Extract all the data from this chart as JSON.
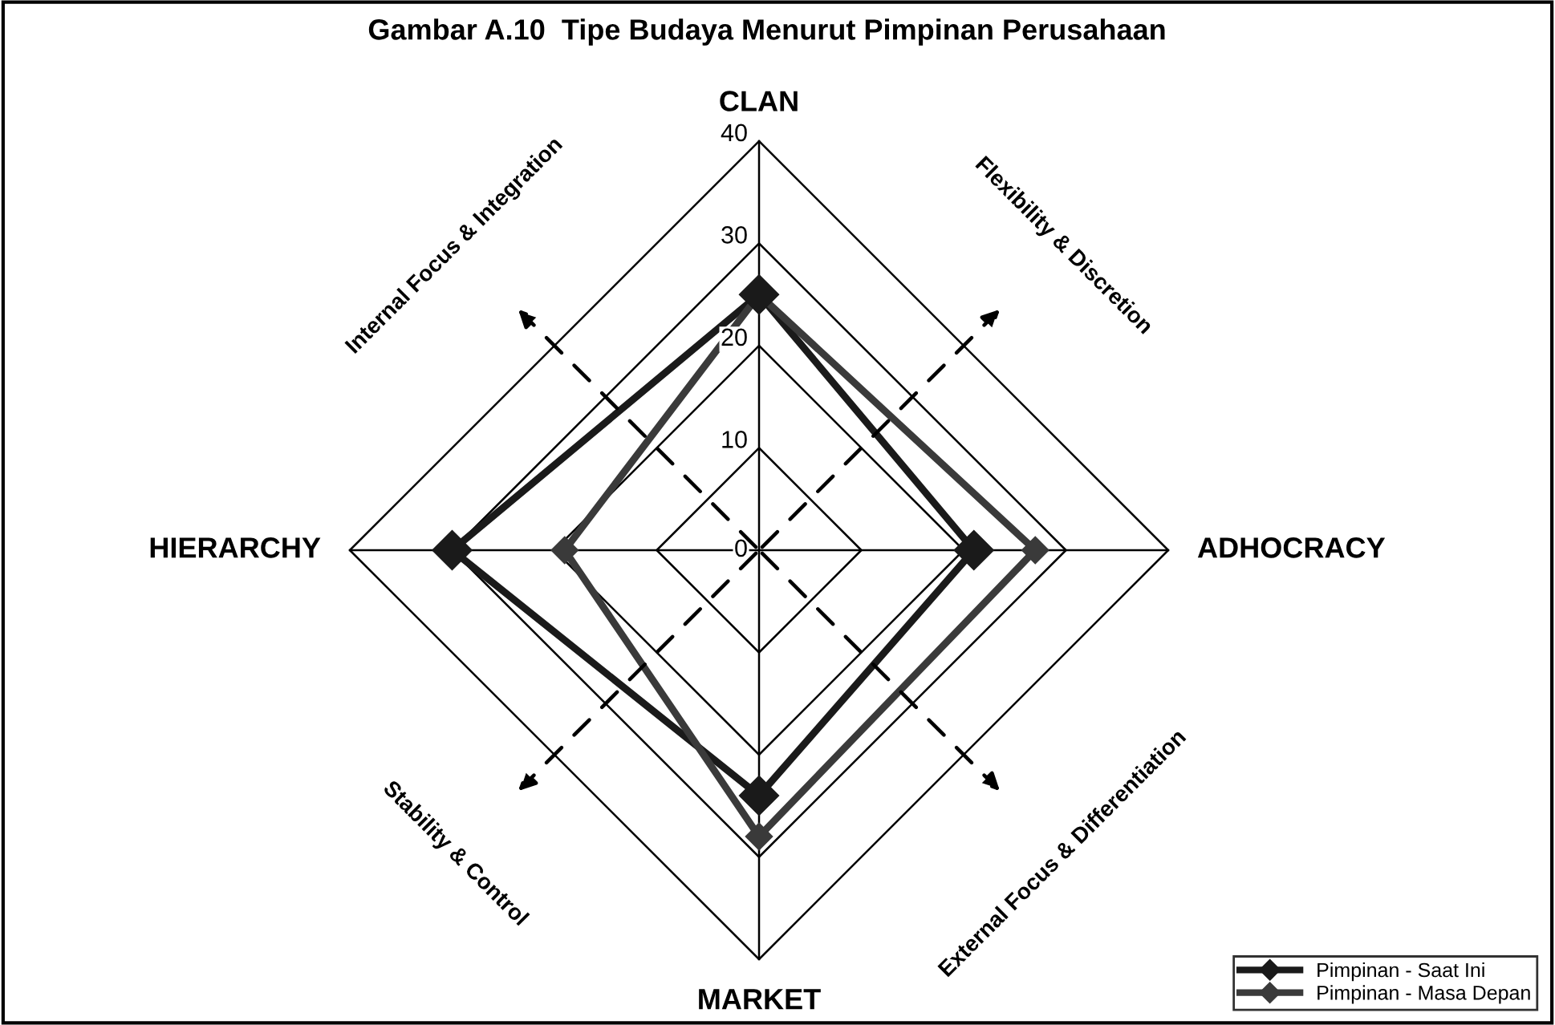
{
  "chart_data": {
    "type": "radar",
    "title": "Gambar A.10  Tipe Budaya Menurut Pimpinan Perusahaan",
    "categories": [
      "CLAN",
      "ADHOCRACY",
      "MARKET",
      "HIERARCHY"
    ],
    "series": [
      {
        "name": "Pimpinan - Saat Ini",
        "color": "#1a1a1a",
        "values": [
          25,
          21,
          24,
          30
        ]
      },
      {
        "name": "Pimpinan - Masa Depan",
        "color": "#3a3a3a",
        "values": [
          25,
          27,
          28,
          19
        ]
      }
    ],
    "ylim": [
      0,
      40
    ],
    "yticks": [
      0,
      10,
      20,
      30,
      40
    ],
    "grid": true,
    "legend": "bottom right",
    "marker": "diamond",
    "line_style": "solid",
    "annotations": [
      "Internal Focus & Integration",
      "Flexibility & Discretion",
      "Stability & Control",
      "External Focus & Differentiation"
    ]
  }
}
